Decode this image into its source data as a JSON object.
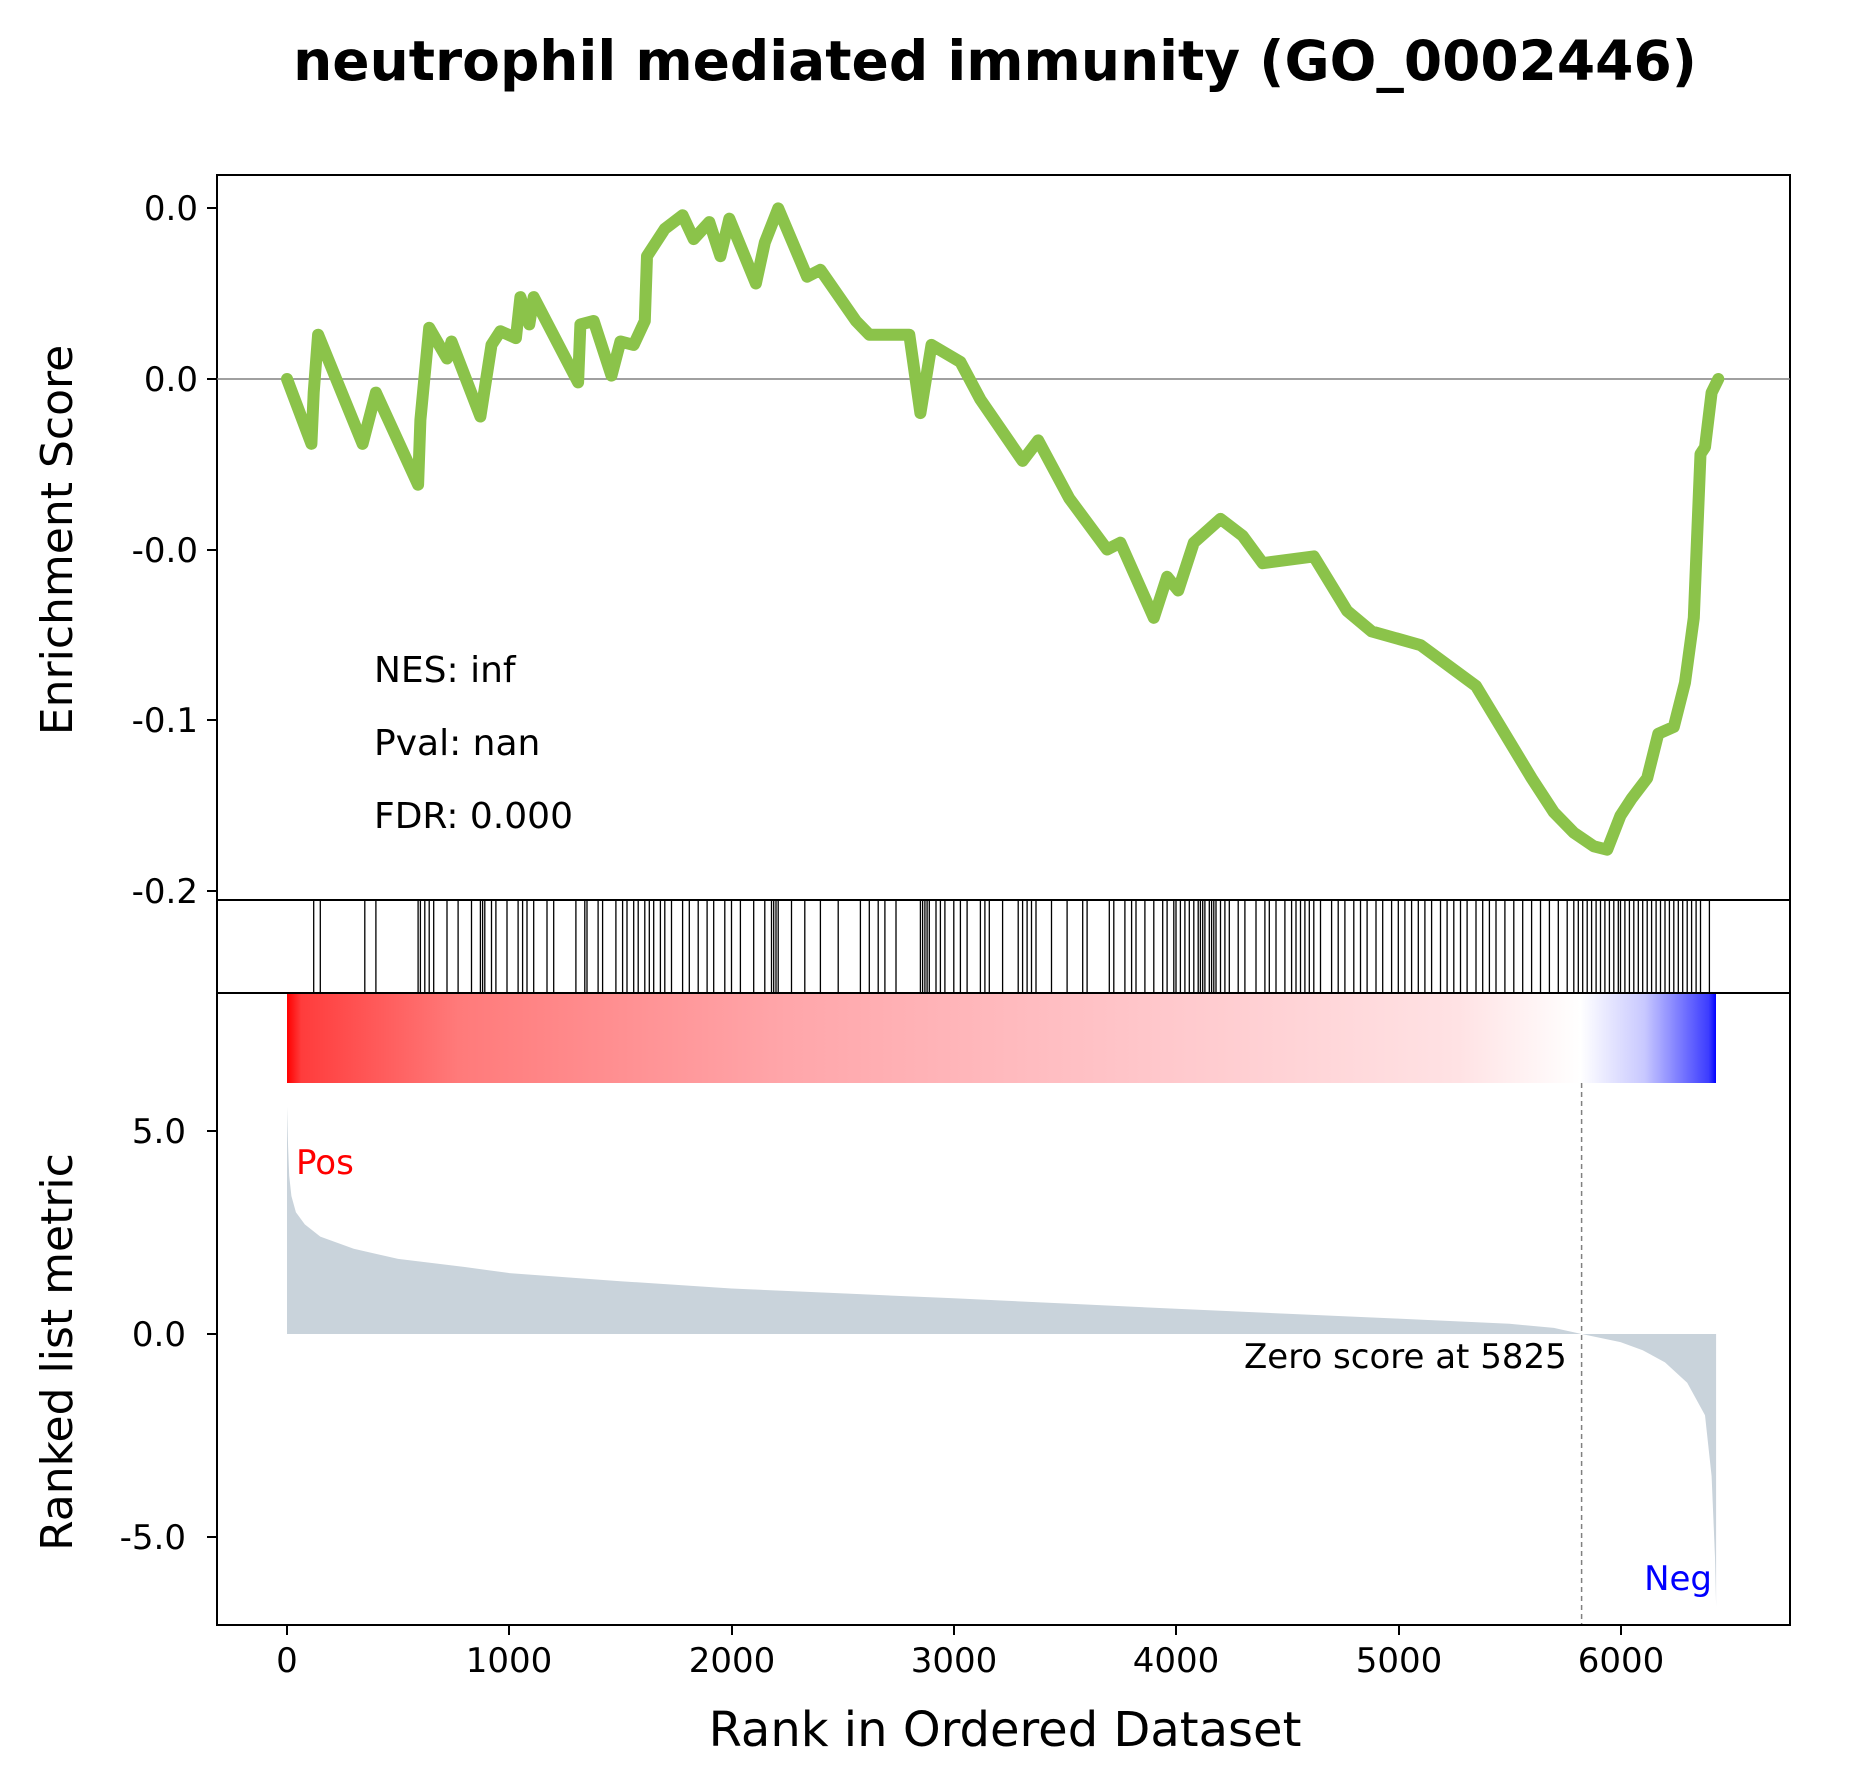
{
  "title": "neutrophil mediated immunity (GO_0002446)",
  "stats": {
    "nes_label": "NES: inf",
    "pval_label": "Pval: nan",
    "fdr_label": "FDR: 0.000"
  },
  "colors": {
    "enrichment_line": "#8bc34a",
    "metric_fill": "#c9d3db",
    "positive": "#ff0000",
    "negative": "#0000ff",
    "zero_line": "#808080"
  },
  "chart_data": [
    {
      "type": "line",
      "panel": "enrichment",
      "ylabel": "Enrichment Score",
      "yticks": [
        "0.0",
        "0.0",
        "-0.0",
        "-0.1",
        "-0.2"
      ],
      "ylim": [
        -0.21,
        0.02
      ],
      "xlim": [
        -330,
        6730
      ],
      "hline": 0,
      "points": [
        [
          0,
          0.0
        ],
        [
          110,
          -0.019
        ],
        [
          120,
          -0.004
        ],
        [
          140,
          0.013
        ],
        [
          340,
          -0.019
        ],
        [
          400,
          -0.004
        ],
        [
          590,
          -0.031
        ],
        [
          600,
          -0.012
        ],
        [
          640,
          0.015
        ],
        [
          720,
          0.006
        ],
        [
          740,
          0.011
        ],
        [
          870,
          -0.011
        ],
        [
          920,
          0.01
        ],
        [
          960,
          0.014
        ],
        [
          1030,
          0.012
        ],
        [
          1050,
          0.024
        ],
        [
          1090,
          0.016
        ],
        [
          1110,
          0.024
        ],
        [
          1310,
          -0.001
        ],
        [
          1320,
          0.016
        ],
        [
          1380,
          0.017
        ],
        [
          1460,
          0.001
        ],
        [
          1500,
          0.011
        ],
        [
          1560,
          0.01
        ],
        [
          1610,
          0.017
        ],
        [
          1620,
          0.036
        ],
        [
          1700,
          0.044
        ],
        [
          1780,
          0.048
        ],
        [
          1830,
          0.041
        ],
        [
          1900,
          0.046
        ],
        [
          1950,
          0.036
        ],
        [
          1990,
          0.047
        ],
        [
          2110,
          0.028
        ],
        [
          2150,
          0.04
        ],
        [
          2210,
          0.05
        ],
        [
          2340,
          0.03
        ],
        [
          2400,
          0.032
        ],
        [
          2560,
          0.017
        ],
        [
          2620,
          0.013
        ],
        [
          2800,
          0.013
        ],
        [
          2850,
          -0.01
        ],
        [
          2900,
          0.01
        ],
        [
          3030,
          0.005
        ],
        [
          3120,
          -0.006
        ],
        [
          3310,
          -0.024
        ],
        [
          3380,
          -0.018
        ],
        [
          3520,
          -0.035
        ],
        [
          3690,
          -0.05
        ],
        [
          3750,
          -0.048
        ],
        [
          3900,
          -0.07
        ],
        [
          3960,
          -0.058
        ],
        [
          4010,
          -0.062
        ],
        [
          4080,
          -0.048
        ],
        [
          4200,
          -0.041
        ],
        [
          4300,
          -0.046
        ],
        [
          4390,
          -0.054
        ],
        [
          4620,
          -0.052
        ],
        [
          4770,
          -0.068
        ],
        [
          4880,
          -0.074
        ],
        [
          5100,
          -0.078
        ],
        [
          5350,
          -0.09
        ],
        [
          5600,
          -0.117
        ],
        [
          5700,
          -0.127
        ],
        [
          5790,
          -0.133
        ],
        [
          5880,
          -0.137
        ],
        [
          5940,
          -0.138
        ],
        [
          6000,
          -0.128
        ],
        [
          6050,
          -0.123
        ],
        [
          6120,
          -0.117
        ],
        [
          6170,
          -0.104
        ],
        [
          6240,
          -0.102
        ],
        [
          6290,
          -0.089
        ],
        [
          6330,
          -0.07
        ],
        [
          6360,
          -0.022
        ],
        [
          6380,
          -0.02
        ],
        [
          6410,
          -0.004
        ],
        [
          6440,
          0.0
        ]
      ]
    },
    {
      "type": "barcode",
      "panel": "hits",
      "description": "gene-set member positions along ranked list",
      "hits": [
        120,
        150,
        350,
        400,
        590,
        600,
        620,
        640,
        660,
        720,
        770,
        830,
        870,
        880,
        890,
        920,
        940,
        990,
        1040,
        1060,
        1080,
        1110,
        1170,
        1200,
        1300,
        1340,
        1350,
        1400,
        1420,
        1480,
        1510,
        1530,
        1560,
        1580,
        1610,
        1630,
        1650,
        1680,
        1700,
        1730,
        1780,
        1810,
        1850,
        1890,
        1920,
        1970,
        2000,
        2040,
        2100,
        2150,
        2180,
        2190,
        2200,
        2210,
        2270,
        2330,
        2400,
        2480,
        2580,
        2620,
        2660,
        2690,
        2740,
        2850,
        2860,
        2870,
        2880,
        2890,
        2920,
        2940,
        2960,
        3000,
        3030,
        3060,
        3120,
        3140,
        3160,
        3220,
        3290,
        3310,
        3330,
        3350,
        3370,
        3440,
        3510,
        3580,
        3600,
        3700,
        3720,
        3770,
        3800,
        3820,
        3860,
        3900,
        3940,
        3960,
        3990,
        4000,
        4020,
        4040,
        4060,
        4080,
        4100,
        4110,
        4120,
        4130,
        4150,
        4160,
        4170,
        4180,
        4200,
        4220,
        4240,
        4280,
        4310,
        4360,
        4400,
        4420,
        4450,
        4490,
        4520,
        4540,
        4560,
        4580,
        4600,
        4620,
        4650,
        4700,
        4730,
        4760,
        4800,
        4830,
        4860,
        4900,
        4930,
        4970,
        5000,
        5030,
        5060,
        5090,
        5120,
        5150,
        5190,
        5220,
        5250,
        5280,
        5310,
        5350,
        5380,
        5410,
        5440,
        5480,
        5520,
        5560,
        5600,
        5640,
        5680,
        5720,
        5760,
        5790,
        5810,
        5830,
        5850,
        5870,
        5890,
        5910,
        5930,
        5950,
        5970,
        5990,
        6000,
        6020,
        6040,
        6060,
        6080,
        6100,
        6120,
        6140,
        6160,
        6180,
        6200,
        6220,
        6240,
        6260,
        6280,
        6300,
        6320,
        6340,
        6360,
        6400
      ]
    },
    {
      "type": "area",
      "panel": "ranked_metric",
      "xlabel": "Rank in Ordered Dataset",
      "ylabel": "Ranked list metric",
      "xlim": [
        -330,
        6730
      ],
      "ylim": [
        -7.3,
        7.3
      ],
      "xticks": [
        "0",
        "1000",
        "2000",
        "3000",
        "4000",
        "5000",
        "6000"
      ],
      "xtick_values": [
        0,
        1000,
        2000,
        3000,
        4000,
        5000,
        6000
      ],
      "yticks": [
        "5.0",
        "0.0",
        "-5.0"
      ],
      "ytick_values": [
        5,
        0,
        -5
      ],
      "pos_label": "Pos",
      "neg_label": "Neg",
      "zero_cross": 5825,
      "zero_label": "Zero score at 5825",
      "points": [
        [
          0,
          5.6
        ],
        [
          5,
          4.6
        ],
        [
          10,
          3.9
        ],
        [
          20,
          3.4
        ],
        [
          40,
          3.0
        ],
        [
          80,
          2.7
        ],
        [
          150,
          2.4
        ],
        [
          300,
          2.1
        ],
        [
          500,
          1.85
        ],
        [
          800,
          1.65
        ],
        [
          1000,
          1.5
        ],
        [
          1500,
          1.3
        ],
        [
          2000,
          1.12
        ],
        [
          2500,
          1.0
        ],
        [
          3000,
          0.88
        ],
        [
          3500,
          0.75
        ],
        [
          4000,
          0.62
        ],
        [
          4500,
          0.5
        ],
        [
          5000,
          0.38
        ],
        [
          5500,
          0.25
        ],
        [
          5700,
          0.15
        ],
        [
          5825,
          0.0
        ],
        [
          6000,
          -0.2
        ],
        [
          6100,
          -0.4
        ],
        [
          6200,
          -0.7
        ],
        [
          6300,
          -1.2
        ],
        [
          6380,
          -2.0
        ],
        [
          6410,
          -3.5
        ],
        [
          6425,
          -5.5
        ],
        [
          6430,
          -6.7
        ]
      ],
      "gradient_bar": {
        "start": 0,
        "end": 6430,
        "stops": [
          "#ff0000",
          "#ff8a8a",
          "#ffb3b7",
          "#ffd8da",
          "#ffffff",
          "#0000ff"
        ]
      }
    }
  ]
}
